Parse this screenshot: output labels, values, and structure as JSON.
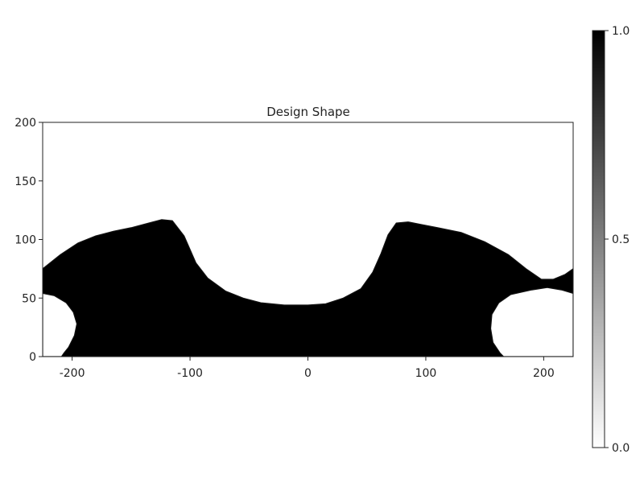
{
  "chart_data": {
    "type": "heatmap",
    "title": "Design Shape",
    "xlabel": "",
    "ylabel": "",
    "xlim": [
      -225,
      225
    ],
    "ylim": [
      0,
      200
    ],
    "x_ticks": [
      -200,
      -100,
      0,
      100,
      200
    ],
    "y_ticks": [
      0,
      50,
      100,
      150,
      200
    ],
    "colorbar": {
      "min": 0.0,
      "max": 1.0,
      "ticks": [
        0.0,
        0.5,
        1.0
      ],
      "tick_labels": [
        "0.0",
        "0.5",
        "1.0"
      ],
      "colormap": "grayscale",
      "low_color": "#ffffff",
      "high_color": "#000000"
    },
    "material_value": 1.0,
    "void_value": 0.0,
    "material_top_profile": [
      [
        -225,
        75
      ],
      [
        -210,
        87
      ],
      [
        -195,
        97
      ],
      [
        -180,
        103
      ],
      [
        -165,
        107
      ],
      [
        -150,
        110
      ],
      [
        -135,
        114
      ],
      [
        -124,
        117
      ],
      [
        -115,
        116
      ],
      [
        -105,
        103
      ],
      [
        -95,
        80
      ],
      [
        -85,
        67
      ],
      [
        -70,
        56
      ],
      [
        -55,
        50
      ],
      [
        -40,
        46
      ],
      [
        -20,
        44
      ],
      [
        0,
        44
      ],
      [
        15,
        45
      ],
      [
        30,
        50
      ],
      [
        45,
        58
      ],
      [
        55,
        72
      ],
      [
        62,
        88
      ],
      [
        68,
        104
      ],
      [
        75,
        114
      ],
      [
        85,
        115
      ],
      [
        95,
        113
      ],
      [
        110,
        110
      ],
      [
        130,
        106
      ],
      [
        150,
        98
      ],
      [
        170,
        87
      ],
      [
        185,
        75
      ],
      [
        198,
        66
      ],
      [
        208,
        66
      ],
      [
        218,
        70
      ],
      [
        225,
        75
      ]
    ],
    "voids": [
      {
        "boundary": [
          [
            -225,
            54
          ],
          [
            -215,
            52
          ],
          [
            -205,
            46
          ],
          [
            -199,
            38
          ],
          [
            -196,
            28
          ],
          [
            -198,
            18
          ],
          [
            -203,
            8
          ],
          [
            -207,
            3
          ],
          [
            -209,
            0
          ],
          [
            -225,
            0
          ]
        ]
      },
      {
        "boundary": [
          [
            225,
            54
          ],
          [
            215,
            57
          ],
          [
            203,
            59
          ],
          [
            190,
            57
          ],
          [
            172,
            53
          ],
          [
            162,
            46
          ],
          [
            156,
            36
          ],
          [
            155,
            24
          ],
          [
            157,
            12
          ],
          [
            163,
            3
          ],
          [
            166,
            0
          ],
          [
            225,
            0
          ]
        ]
      }
    ]
  }
}
